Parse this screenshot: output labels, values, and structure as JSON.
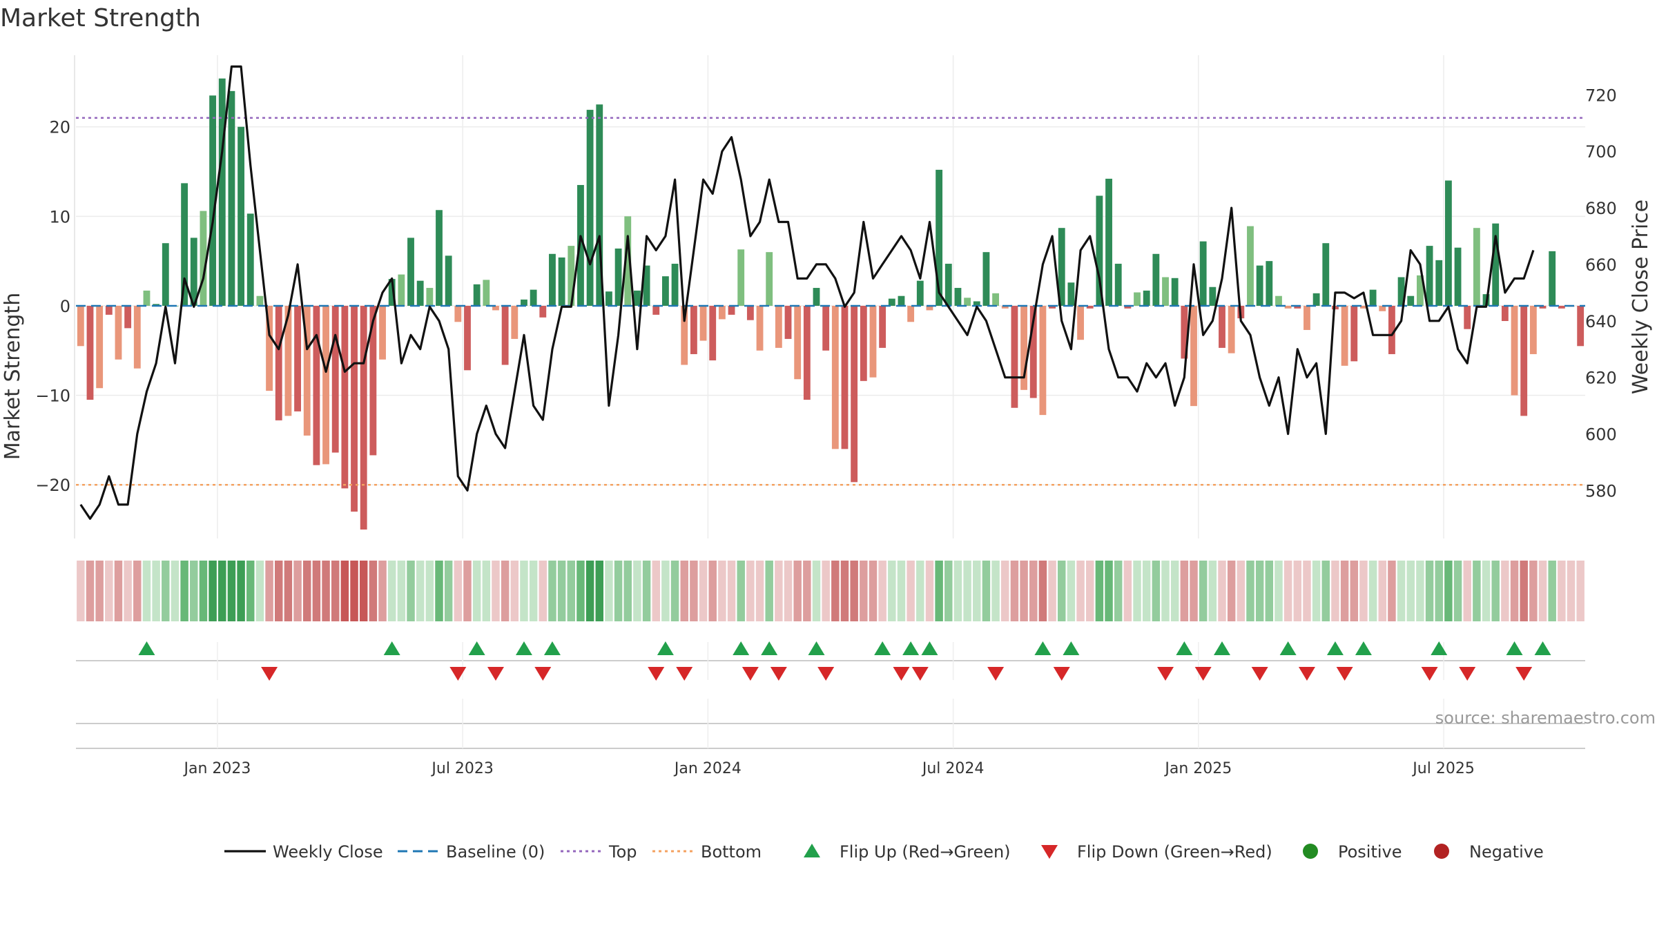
{
  "title": "Market Strength",
  "source": "source: sharemaestro.com",
  "colors": {
    "price_line": "#111111",
    "baseline": "#1f77b4",
    "top": "#9467bd",
    "bottom": "#f4a261",
    "pos_strong": "#2e8b57",
    "pos_light": "#7fbf7f",
    "neg_strong": "#cd5c5c",
    "neg_light": "#e9967a",
    "flip_up": "#22a04b",
    "flip_down": "#d62728",
    "positive_dot": "#228b22",
    "negative_dot": "#b22222"
  },
  "chart_data": {
    "type": "bar",
    "title": "Market Strength",
    "ylabel_left": "Market Strength",
    "ylabel_right": "Weekly Close Price",
    "ylim_left": [
      -26,
      28
    ],
    "ylim_right": [
      563,
      734
    ],
    "yticks_left": [
      20,
      10,
      0,
      -10,
      -20
    ],
    "ytick_labels_left": [
      "20",
      "10",
      "0",
      "−10",
      "−20"
    ],
    "yticks_right": [
      720,
      700,
      680,
      660,
      640,
      620,
      600,
      580
    ],
    "x_tick_labels": [
      "Jan 2023",
      "Jul 2023",
      "Jan 2024",
      "Jul 2024",
      "Jan 2025",
      "Jul 2025"
    ],
    "x_tick_index": [
      15,
      41,
      67,
      93,
      119,
      145
    ],
    "top_level": 21,
    "bottom_level": -20,
    "baseline": 0,
    "strength": [
      -4.5,
      -10.5,
      -9.2,
      -1,
      -6,
      -2.5,
      -7,
      1.7,
      0.2,
      7,
      0,
      13.7,
      7.6,
      10.6,
      23.5,
      25.4,
      24,
      20,
      10.3,
      1.1,
      -9.5,
      -12.8,
      -12.3,
      -11.8,
      -14.5,
      -17.8,
      -17.7,
      -16.4,
      -20.4,
      -23,
      -25,
      -16.7,
      -6,
      3,
      3.5,
      7.6,
      2.8,
      2,
      10.7,
      5.6,
      -1.8,
      -7.2,
      2.4,
      2.9,
      -0.5,
      -6.6,
      -3.7,
      0.7,
      1.8,
      -1.3,
      5.8,
      5.4,
      6.7,
      13.5,
      21.9,
      22.5,
      1.6,
      6.4,
      10,
      1.7,
      4.5,
      -1,
      3.3,
      4.7,
      -6.6,
      -5.4,
      -3.9,
      -6.1,
      -1.5,
      -1,
      6.3,
      -1.6,
      -5,
      6,
      -4.7,
      -3.7,
      -8.2,
      -10.5,
      2,
      -5,
      -16,
      -16,
      -19.7,
      -8.4,
      -8,
      -4.7,
      0.8,
      1.1,
      -1.8,
      2.8,
      -0.5,
      15.2,
      4.7,
      2,
      0.9,
      0.5,
      6,
      1.4,
      -0.3,
      -11.4,
      -9.4,
      -10.3,
      -12.2,
      -0.3,
      8.7,
      2.6,
      -3.8,
      -0.3,
      12.3,
      14.2,
      4.7,
      -0.3,
      1.5,
      1.7,
      5.8,
      3.2,
      3.1,
      -5.9,
      -11.2,
      7.2,
      2.1,
      -4.7,
      -5.3,
      -1.4,
      8.9,
      4.5,
      5,
      1.1,
      -0.3,
      -0.3,
      -2.7,
      1.4,
      7,
      -0.4,
      -6.7,
      -6.2,
      -0.3,
      1.8,
      -0.6,
      -5.4,
      3.2,
      1.1,
      3.4,
      6.7,
      5.1,
      14,
      6.5,
      -2.6,
      8.7,
      1.3,
      9.2,
      -1.7,
      -10,
      -12.3,
      -5.4,
      -0.3,
      6.1,
      -0.3,
      -0.1,
      -4.5
    ],
    "weekly_close": [
      575,
      570,
      575,
      585,
      575,
      575,
      600,
      615,
      625,
      645,
      625,
      655,
      645,
      655,
      675,
      700,
      730,
      730,
      695,
      665,
      635,
      630,
      642,
      660,
      630,
      635,
      622,
      635,
      622,
      625,
      625,
      640,
      650,
      655,
      625,
      635,
      630,
      645,
      640,
      630,
      585,
      580,
      600,
      610,
      600,
      595,
      615,
      635,
      610,
      605,
      630,
      645,
      645,
      670,
      660,
      670,
      610,
      635,
      670,
      630,
      670,
      665,
      670,
      690,
      640,
      665,
      690,
      685,
      700,
      705,
      690,
      670,
      675,
      690,
      675,
      675,
      655,
      655,
      660,
      660,
      655,
      645,
      650,
      675,
      655,
      660,
      665,
      670,
      665,
      655,
      675,
      650,
      645,
      640,
      635,
      645,
      640,
      630,
      620,
      620,
      620,
      640,
      660,
      670,
      640,
      630,
      665,
      670,
      655,
      630,
      620,
      620,
      615,
      625,
      620,
      625,
      610,
      620,
      660,
      635,
      640,
      655,
      680,
      640,
      635,
      620,
      610,
      620,
      600,
      630,
      620,
      625,
      600,
      650,
      650,
      648,
      650,
      635,
      635,
      635,
      640,
      665,
      660,
      640,
      640,
      645,
      630,
      625,
      645,
      645,
      670,
      650,
      655,
      655,
      665
    ],
    "series": [
      {
        "name": "Weekly Close",
        "style": "solid"
      },
      {
        "name": "Baseline (0)",
        "style": "dashed"
      },
      {
        "name": "Top",
        "style": "dotted"
      },
      {
        "name": "Bottom",
        "style": "dotted"
      }
    ],
    "flip_up_index": [
      7,
      33,
      42,
      47,
      50,
      62,
      70,
      73,
      78,
      85,
      88,
      90,
      102,
      105,
      117,
      121,
      128,
      133,
      136,
      144,
      152,
      155
    ],
    "flip_down_index": [
      20,
      40,
      44,
      49,
      61,
      64,
      71,
      74,
      79,
      87,
      89,
      97,
      104,
      115,
      119,
      125,
      130,
      134,
      143,
      147,
      153
    ]
  },
  "legend": [
    {
      "label": "Weekly Close",
      "kind": "line"
    },
    {
      "label": "Baseline (0)",
      "kind": "dash"
    },
    {
      "label": "Top",
      "kind": "dot-line"
    },
    {
      "label": "Bottom",
      "kind": "dot-line"
    },
    {
      "label": "Flip Up (Red→Green)",
      "kind": "triangle-up"
    },
    {
      "label": "Flip Down (Green→Red)",
      "kind": "triangle-down"
    },
    {
      "label": "Positive",
      "kind": "dot"
    },
    {
      "label": "Negative",
      "kind": "dot"
    }
  ]
}
